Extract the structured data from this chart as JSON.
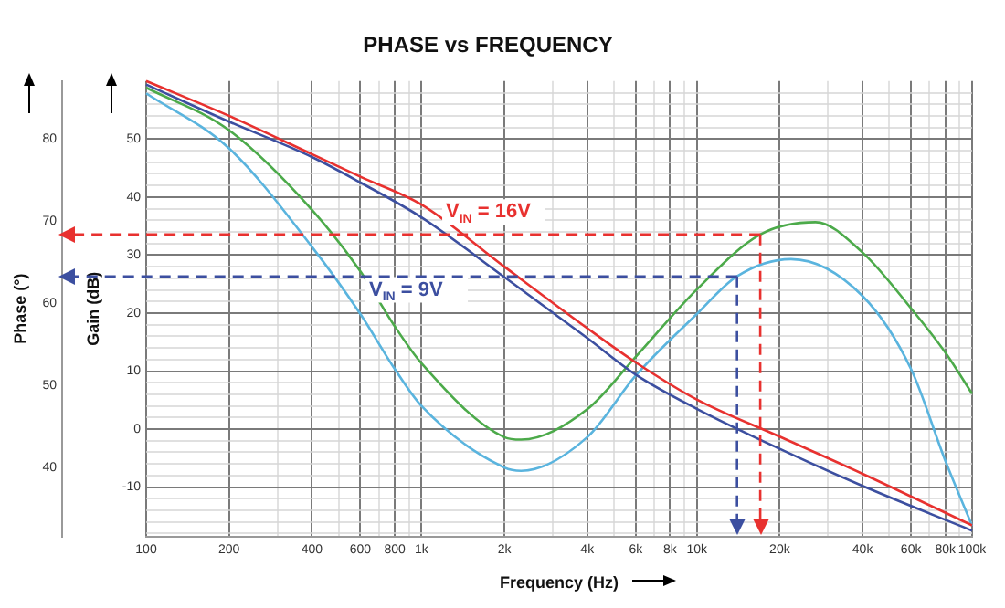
{
  "chart_data": {
    "type": "line",
    "title": "PHASE vs FREQUENCY",
    "xlabel": "Frequency (Hz)",
    "ylabel": "Gain (dB)",
    "y2label": "Phase (°)",
    "log": "x",
    "grid": true,
    "xlim": [
      100,
      100000
    ],
    "xticks": [
      100,
      200,
      {
        "value": 300,
        "label": null
      },
      400,
      {
        "value": 500,
        "label": null
      },
      600,
      {
        "value": 700,
        "label": null
      },
      800,
      {
        "value": 900,
        "label": null
      },
      {
        "value": 1000,
        "label": "1k"
      },
      {
        "value": 2000,
        "label": "2k"
      },
      {
        "value": 3000,
        "label": null
      },
      {
        "value": 4000,
        "label": "4k"
      },
      {
        "value": 5000,
        "label": null
      },
      {
        "value": 6000,
        "label": "6k"
      },
      {
        "value": 7000,
        "label": null
      },
      {
        "value": 8000,
        "label": "8k"
      },
      {
        "value": 9000,
        "label": null
      },
      {
        "value": 10000,
        "label": "10k"
      },
      {
        "value": 20000,
        "label": "20k"
      },
      {
        "value": 30000,
        "label": null
      },
      {
        "value": 40000,
        "label": "40k"
      },
      {
        "value": 50000,
        "label": null
      },
      {
        "value": 60000,
        "label": "60k"
      },
      {
        "value": 70000,
        "label": null
      },
      {
        "value": 80000,
        "label": "80k"
      },
      {
        "value": 90000,
        "label": null
      },
      {
        "value": 100000,
        "label": "100k"
      }
    ],
    "ylim": [
      -18.5,
      60
    ],
    "yticks": [
      {
        "value": -18,
        "label": null
      },
      {
        "value": -16,
        "label": null
      },
      {
        "value": -14,
        "label": null
      },
      {
        "value": -12,
        "label": null
      },
      -10,
      {
        "value": -8,
        "label": null
      },
      {
        "value": -6,
        "label": null
      },
      {
        "value": -4,
        "label": null
      },
      {
        "value": -2,
        "label": null
      },
      0,
      {
        "value": 2,
        "label": null
      },
      {
        "value": 4,
        "label": null
      },
      {
        "value": 6,
        "label": null
      },
      {
        "value": 8,
        "label": null
      },
      10,
      {
        "value": 12,
        "label": null
      },
      {
        "value": 14,
        "label": null
      },
      {
        "value": 16,
        "label": null
      },
      {
        "value": 18,
        "label": null
      },
      20,
      {
        "value": 22,
        "label": null
      },
      {
        "value": 24,
        "label": null
      },
      {
        "value": 26,
        "label": null
      },
      {
        "value": 28,
        "label": null
      },
      30,
      {
        "value": 32,
        "label": null
      },
      {
        "value": 34,
        "label": null
      },
      {
        "value": 36,
        "label": null
      },
      {
        "value": 38,
        "label": null
      },
      40,
      {
        "value": 42,
        "label": null
      },
      {
        "value": 44,
        "label": null
      },
      {
        "value": 46,
        "label": null
      },
      {
        "value": 48,
        "label": null
      },
      50,
      {
        "value": 52,
        "label": null
      },
      {
        "value": 54,
        "label": null
      },
      {
        "value": 56,
        "label": null
      },
      {
        "value": 58,
        "label": null
      }
    ],
    "y2lim": [
      31.6,
      87.1
    ],
    "y2ticks": [
      40,
      50,
      60,
      70,
      80
    ],
    "series": [
      {
        "name": "V$_{IN}$ = 16V",
        "color": "#e8312f",
        "x": [
          100,
          200,
          400,
          600,
          1000,
          2000,
          4000,
          6000,
          10000,
          20000,
          40000,
          100000
        ],
        "values": [
          60,
          54,
          47.4,
          43.5,
          38.7,
          28,
          17.4,
          11.5,
          5.1,
          -1.3,
          -7.7,
          -16.6
        ]
      },
      {
        "name": "V$_{IN}$ = 9V",
        "color": "#3c4fa0",
        "x": [
          100,
          200,
          400,
          600,
          1000,
          2000,
          4000,
          6000,
          10000,
          20000,
          40000,
          100000
        ],
        "values": [
          59.4,
          53,
          46.9,
          42.5,
          36.5,
          26.2,
          15.7,
          9.4,
          3.5,
          -3.4,
          -9.8,
          -17.5
        ]
      },
      {
        "color": "#4caa4a",
        "axis": "y2",
        "x": [
          100,
          200,
          400,
          600,
          800,
          1000,
          2000,
          2300,
          4000,
          6000,
          10000,
          17000,
          27000,
          40000,
          60000,
          80000,
          100000
        ],
        "values": [
          86.3,
          81.1,
          71.4,
          63.9,
          57.2,
          52.7,
          43.7,
          43.4,
          47.1,
          53.5,
          61.7,
          68.4,
          69.9,
          66.2,
          59.4,
          54,
          49
        ]
      },
      {
        "color": "#5ab4de",
        "axis": "y2",
        "x": [
          100,
          200,
          400,
          600,
          800,
          1000,
          2000,
          2300,
          4000,
          6000,
          10000,
          14000,
          22000,
          40000,
          60000,
          80000,
          100000
        ],
        "values": [
          85.6,
          78.9,
          66.9,
          58.7,
          52,
          47.5,
          40,
          39.6,
          43.7,
          51.2,
          58.7,
          63.3,
          65.4,
          60.9,
          52,
          40.8,
          32.9
        ]
      }
    ],
    "ref_lines": [
      {
        "axis": "y2",
        "value": 68.4,
        "color": "#e8312f",
        "line_style": "dashed"
      },
      {
        "axis": "x",
        "value": 17000,
        "color": "#e8312f",
        "line_style": "dashed"
      },
      {
        "axis": "y2",
        "value": 63.3,
        "color": "#3c4fa0",
        "line_style": "dashed"
      },
      {
        "axis": "x",
        "value": 14000,
        "color": "#3c4fa0",
        "line_style": "dashed"
      }
    ]
  }
}
